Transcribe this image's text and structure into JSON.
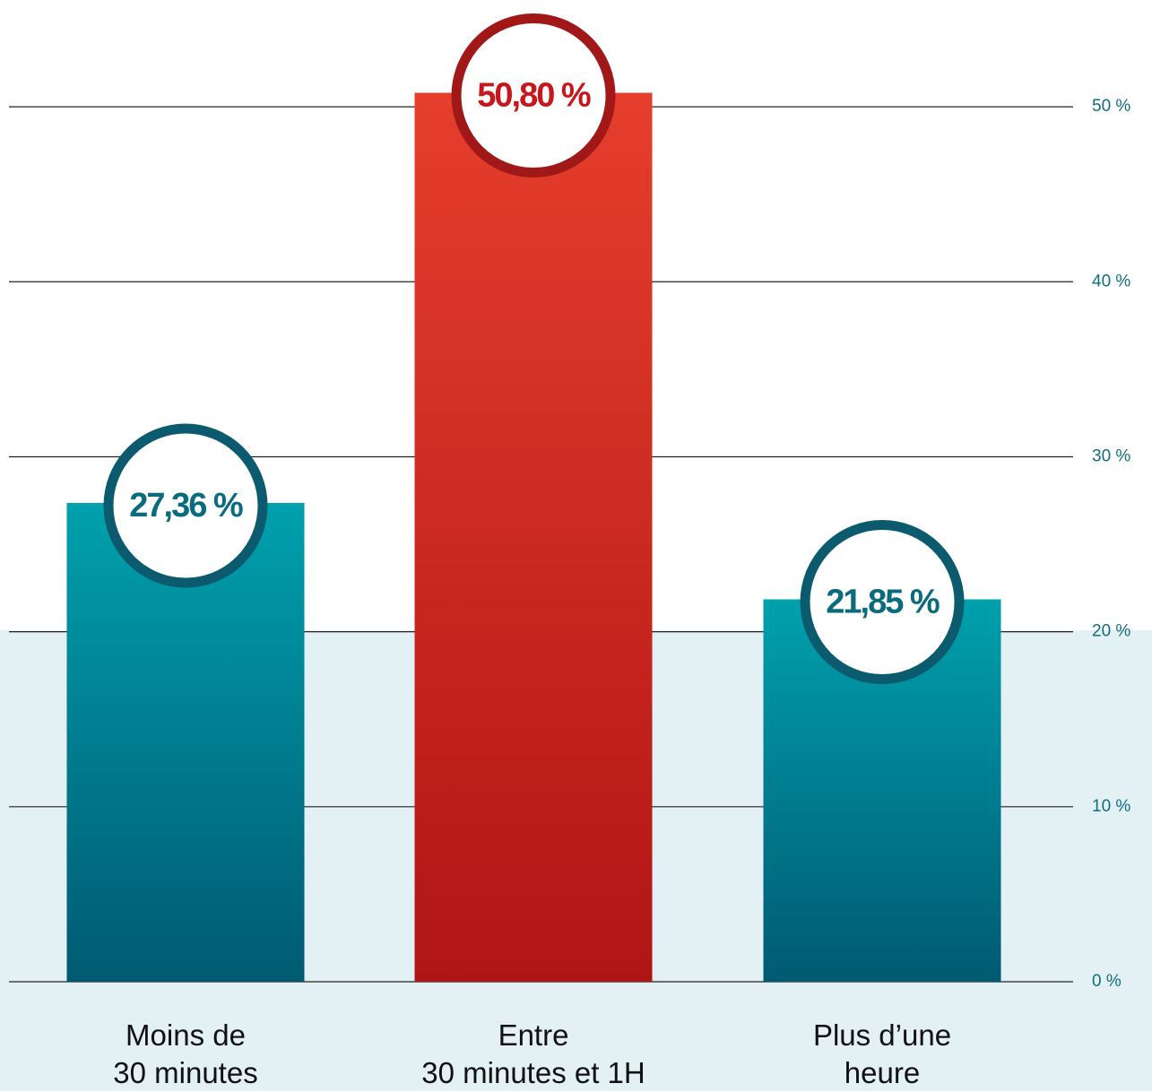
{
  "chart_data": {
    "type": "bar",
    "categories": [
      "Moins de\n30 minutes",
      "Entre\n30 minutes et 1H",
      "Plus d’une\nheure"
    ],
    "values": [
      27.36,
      50.8,
      21.85
    ],
    "value_labels": [
      "27,36 %",
      "50,80 %",
      "21,85 %"
    ],
    "colors": [
      "#00a0ad",
      "#e63e2d",
      "#00a0ad"
    ],
    "ylim": [
      0,
      56
    ],
    "yticks": [
      {
        "value": 0,
        "label": "0 %"
      },
      {
        "value": 10,
        "label": "10 %"
      },
      {
        "value": 20,
        "label": "20 %"
      },
      {
        "value": 30,
        "label": "30 %"
      },
      {
        "value": 40,
        "label": "40 %"
      },
      {
        "value": 50,
        "label": "50 %"
      }
    ],
    "grid": true
  }
}
